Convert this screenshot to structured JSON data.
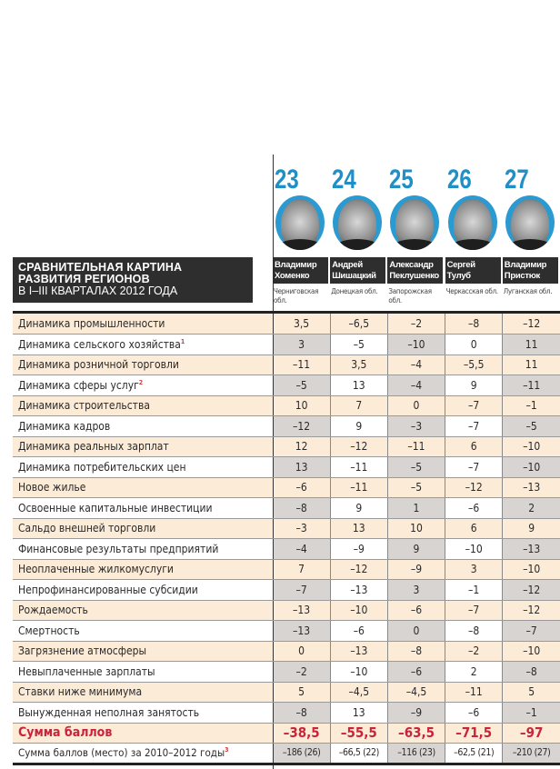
{
  "title": {
    "line1": "СРАВНИТЕЛЬНАЯ КАРТИНА",
    "line2": "РАЗВИТИЯ РЕГИОНОВ",
    "line3": "В I–III КВАРТАЛАХ 2012 ГОДА"
  },
  "colors": {
    "rank": "#1f8fc6",
    "sum": "#c8243c",
    "row_odd": "#fcebd6",
    "row_gray": "#d7d4d1"
  },
  "people": [
    {
      "rank": "23",
      "first": "Владимир",
      "last": "Хоменко",
      "region": "Черниговская обл."
    },
    {
      "rank": "24",
      "first": "Андрей",
      "last": "Шишацкий",
      "region": "Донецкая обл."
    },
    {
      "rank": "25",
      "first": "Александр",
      "last": "Пеклушенко",
      "region": "Запорожская обл."
    },
    {
      "rank": "26",
      "first": "Сергей",
      "last": "Тулуб",
      "region": "Черкасская обл."
    },
    {
      "rank": "27",
      "first": "Владимир",
      "last": "Пристюк",
      "region": "Луганская обл."
    }
  ],
  "rows": [
    {
      "label": "Динамика промышленности",
      "values": [
        "3,5",
        "–6,5",
        "–2",
        "–8",
        "–12"
      ]
    },
    {
      "label": "Динамика сельского хозяйства",
      "note": "1",
      "values": [
        "3",
        "–5",
        "–10",
        "0",
        "11"
      ]
    },
    {
      "label": "Динамика розничной торговли",
      "values": [
        "–11",
        "3,5",
        "–4",
        "–5,5",
        "11"
      ]
    },
    {
      "label": "Динамика сферы услуг",
      "note": "2",
      "values": [
        "–5",
        "13",
        "–4",
        "9",
        "–11"
      ]
    },
    {
      "label": "Динамика строительства",
      "values": [
        "10",
        "7",
        "0",
        "–7",
        "–1"
      ]
    },
    {
      "label": "Динамика кадров",
      "values": [
        "–12",
        "9",
        "–3",
        "–7",
        "–5"
      ]
    },
    {
      "label": "Динамика реальных зарплат",
      "values": [
        "12",
        "–12",
        "–11",
        "6",
        "–10"
      ]
    },
    {
      "label": "Динамика потребительских цен",
      "values": [
        "13",
        "–11",
        "–5",
        "–7",
        "–10"
      ]
    },
    {
      "label": "Новое жилье",
      "values": [
        "–6",
        "–11",
        "–5",
        "–12",
        "–13"
      ]
    },
    {
      "label": "Освоенные капитальные инвестиции",
      "values": [
        "–8",
        "9",
        "1",
        "–6",
        "2"
      ]
    },
    {
      "label": "Сальдо внешней торговли",
      "values": [
        "–3",
        "13",
        "10",
        "6",
        "9"
      ]
    },
    {
      "label": "Финансовые результаты предприятий",
      "values": [
        "–4",
        "–9",
        "9",
        "–10",
        "–13"
      ]
    },
    {
      "label": "Неоплаченные жилкомуслуги",
      "values": [
        "7",
        "–12",
        "–9",
        "3",
        "–10"
      ]
    },
    {
      "label": "Непрофинансированные субсидии",
      "values": [
        "–7",
        "–13",
        "3",
        "–1",
        "–12"
      ]
    },
    {
      "label": "Рождаемость",
      "values": [
        "–13",
        "–10",
        "–6",
        "–7",
        "–12"
      ]
    },
    {
      "label": "Смертность",
      "values": [
        "–13",
        "–6",
        "0",
        "–8",
        "–7"
      ]
    },
    {
      "label": "Загрязнение атмосферы",
      "values": [
        "0",
        "–13",
        "–8",
        "–2",
        "–10"
      ]
    },
    {
      "label": "Невыплаченные зарплаты",
      "values": [
        "–2",
        "–10",
        "–6",
        "2",
        "–8"
      ]
    },
    {
      "label": "Ставки ниже минимума",
      "values": [
        "5",
        "–4,5",
        "–4,5",
        "–11",
        "5"
      ]
    },
    {
      "label": "Вынужденная неполная занятость",
      "values": [
        "–8",
        "13",
        "–9",
        "–6",
        "–1"
      ]
    }
  ],
  "sum": {
    "label": "Сумма баллов",
    "values": [
      "–38,5",
      "–55,5",
      "–63,5",
      "–71,5",
      "–97"
    ]
  },
  "history": {
    "label": "Сумма баллов (место) за 2010–2012 годы",
    "note": "3",
    "values": [
      "–186 (26)",
      "–66,5 (22)",
      "–116 (23)",
      "–62,5 (21)",
      "–210 (27)"
    ]
  }
}
